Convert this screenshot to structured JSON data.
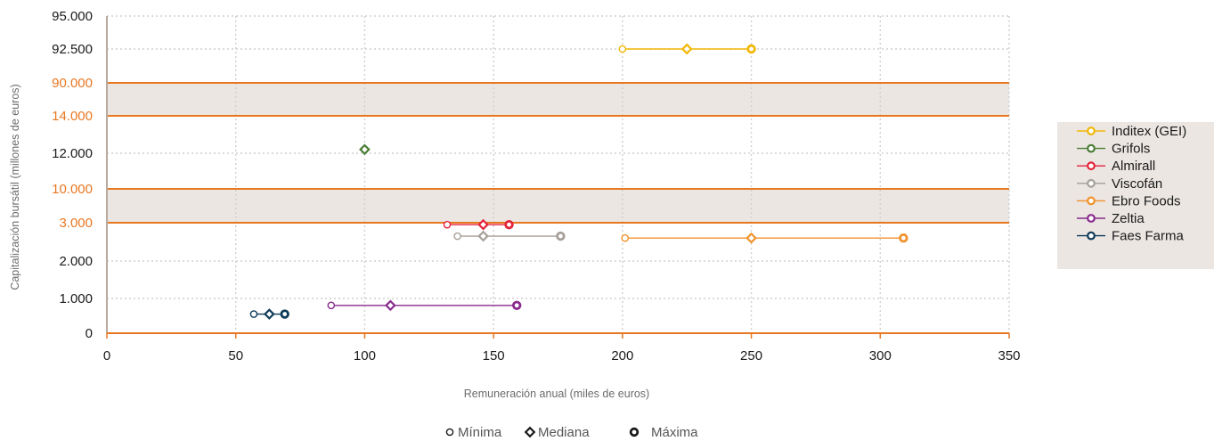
{
  "chart_data": {
    "type": "scatter",
    "xlabel": "Remuneración anual (miles de euros)",
    "ylabel": "Capitalización bursátil (millones de euros)",
    "xlim": [
      0,
      350
    ],
    "x_ticks": [
      "0",
      "50",
      "100",
      "150",
      "200",
      "250",
      "300",
      "350"
    ],
    "y_ticks": [
      {
        "label": "95.000",
        "highlight": false
      },
      {
        "label": "92.500",
        "highlight": false
      },
      {
        "label": "90.000",
        "highlight": true
      },
      {
        "label": "14.000",
        "highlight": true
      },
      {
        "label": "12.000",
        "highlight": false
      },
      {
        "label": "10.000",
        "highlight": true
      },
      {
        "label": "3.000",
        "highlight": true
      },
      {
        "label": "2.000",
        "highlight": false
      },
      {
        "label": "1.000",
        "highlight": false
      },
      {
        "label": "0",
        "highlight": false
      }
    ],
    "y_breaks": [
      [
        "90.000",
        "14.000"
      ],
      [
        "10.000",
        "3.000"
      ]
    ],
    "grid": true,
    "legend_position": "right",
    "series": [
      {
        "name": "Inditex (GEI)",
        "color": "#f2b705",
        "y": 92500,
        "min": 200,
        "median": 225,
        "max": 250
      },
      {
        "name": "Grifols",
        "color": "#4a7d34",
        "y": 12200,
        "min": null,
        "median": 100,
        "max": null
      },
      {
        "name": "Almirall",
        "color": "#e3243b",
        "y": 2950,
        "min": 132,
        "median": 146,
        "max": 156
      },
      {
        "name": "Viscofán",
        "color": "#a59f98",
        "y": 2650,
        "min": 136,
        "median": 146,
        "max": 176
      },
      {
        "name": "Ebro Foods",
        "color": "#f0922b",
        "y": 2600,
        "min": 201,
        "median": 250,
        "max": 309
      },
      {
        "name": "Zeltia",
        "color": "#8a2a8e",
        "y": 800,
        "min": 87,
        "median": 110,
        "max": 159
      },
      {
        "name": "Faes Farma",
        "color": "#0d3a57",
        "y": 550,
        "min": 57,
        "median": 63,
        "max": 69
      }
    ],
    "marker_key": [
      {
        "marker": "circle-open",
        "label": "Mínima"
      },
      {
        "marker": "diamond",
        "label": "Mediana"
      },
      {
        "marker": "circle-bold",
        "label": "Máxima"
      }
    ],
    "colors": {
      "axis": "#e87722",
      "band": "#ebe6e2",
      "grid": "#cfcfcf",
      "legend_bg": "#ebe6e2"
    }
  }
}
